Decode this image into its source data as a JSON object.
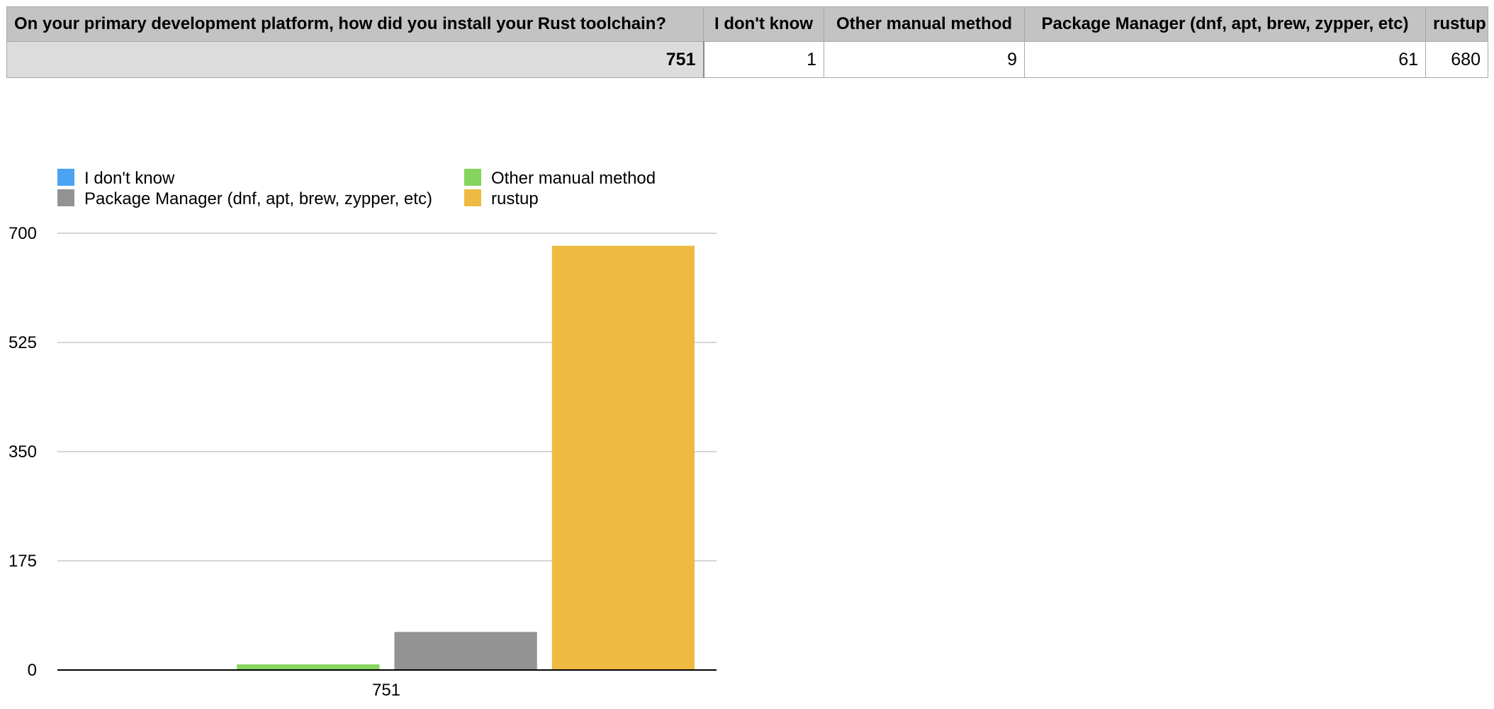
{
  "table": {
    "question": "On your primary development platform, how did you install your Rust toolchain?",
    "columns": [
      "I don't know",
      "Other manual method",
      "Package Manager (dnf, apt, brew, zypper, etc)",
      "rustup"
    ],
    "row_label": "751",
    "values": [
      "1",
      "9",
      "61",
      "680"
    ]
  },
  "chart_data": {
    "type": "bar",
    "categories": [
      "751"
    ],
    "series": [
      {
        "name": "I don't know",
        "values": [
          1
        ],
        "color": "#4ba3f3"
      },
      {
        "name": "Other manual method",
        "values": [
          9
        ],
        "color": "#84d45e"
      },
      {
        "name": "Package Manager (dnf, apt, brew, zypper, etc)",
        "values": [
          61
        ],
        "color": "#939393"
      },
      {
        "name": "rustup",
        "values": [
          680
        ],
        "color": "#eeba42"
      }
    ],
    "ylim": [
      0,
      700
    ],
    "yticks": [
      "0",
      "175",
      "350",
      "525",
      "700"
    ],
    "grid": true,
    "legend": "top-left",
    "xlabel": "",
    "ylabel": ""
  }
}
